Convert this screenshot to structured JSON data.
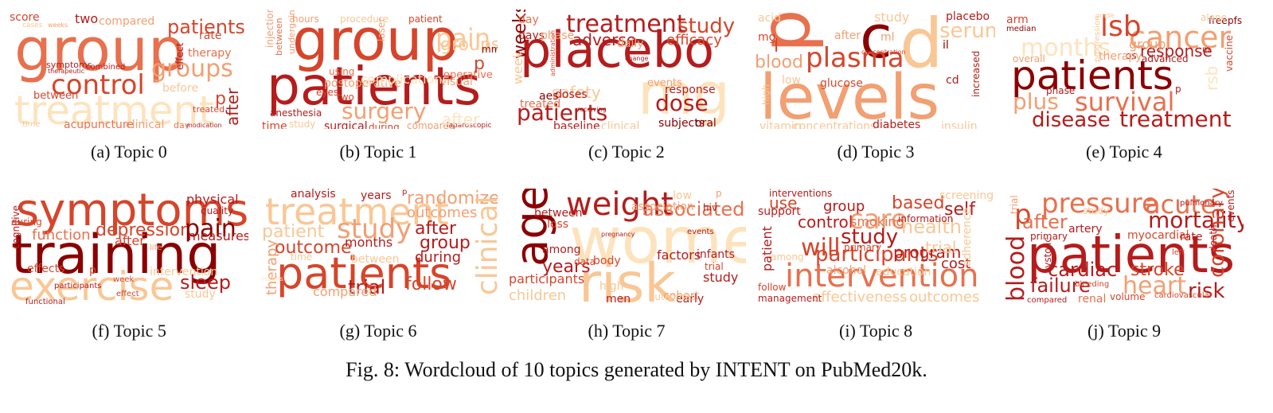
{
  "colors": {
    "c1": "#8b0000",
    "c2": "#b51c1c",
    "c3": "#d6452b",
    "c4": "#e8704d",
    "c5": "#f29f72",
    "c6": "#f9c795",
    "c7": "#fde3bd"
  },
  "panels": [
    {
      "caption": "(a) Topic 0",
      "words": [
        {
          "t": "group",
          "c": "c4"
        },
        {
          "t": "treatment",
          "c": "c7"
        },
        {
          "t": "control",
          "c": "c3"
        },
        {
          "t": "groups",
          "c": "c5"
        },
        {
          "t": "patients",
          "c": "c3"
        },
        {
          "t": "two",
          "c": "c2"
        },
        {
          "t": "compared",
          "c": "c5"
        },
        {
          "t": "score",
          "c": "c3"
        },
        {
          "t": "cases",
          "c": "c6"
        },
        {
          "t": "weeks",
          "c": "c5"
        },
        {
          "t": "rate",
          "c": "c3"
        },
        {
          "t": "therapy",
          "c": "c4"
        },
        {
          "t": "before",
          "c": "c6"
        },
        {
          "t": "between",
          "c": "c3"
        },
        {
          "t": "after",
          "c": "c2"
        },
        {
          "t": "p",
          "c": "c3"
        },
        {
          "t": "effect",
          "c": "c2"
        },
        {
          "t": "symptoms",
          "c": "c2"
        },
        {
          "t": "combined",
          "c": "c2"
        },
        {
          "t": "therapeutic",
          "c": "c2"
        },
        {
          "t": "acupuncture",
          "c": "c4"
        },
        {
          "t": "clinical",
          "c": "c5"
        },
        {
          "t": "day",
          "c": "c4"
        },
        {
          "t": "modication",
          "c": "c2"
        },
        {
          "t": "treated",
          "c": "c3"
        },
        {
          "t": "time",
          "c": "c6"
        }
      ]
    },
    {
      "caption": "(b) Topic 1",
      "words": [
        {
          "t": "group",
          "c": "c3"
        },
        {
          "t": "patients",
          "c": "c2"
        },
        {
          "t": "pain",
          "c": "c6"
        },
        {
          "t": "surgery",
          "c": "c5"
        },
        {
          "t": "groups",
          "c": "c6"
        },
        {
          "t": "postoperative",
          "c": "c5"
        },
        {
          "t": "hours",
          "c": "c5"
        },
        {
          "t": "procedure",
          "c": "c6"
        },
        {
          "t": "patient",
          "c": "c3"
        },
        {
          "t": "injection",
          "c": "c5"
        },
        {
          "t": "between",
          "c": "c4"
        },
        {
          "t": "undergoing",
          "c": "c5"
        },
        {
          "t": "anesthesia",
          "c": "c2"
        },
        {
          "t": "time",
          "c": "c3"
        },
        {
          "t": "study",
          "c": "c6"
        },
        {
          "t": "surgical",
          "c": "c2"
        },
        {
          "t": "during",
          "c": "c3"
        },
        {
          "t": "compared",
          "c": "c5"
        },
        {
          "t": "laparoscopic",
          "c": "c2"
        },
        {
          "t": "visual",
          "c": "c5"
        },
        {
          "t": "eyes",
          "c": "c3"
        },
        {
          "t": "using",
          "c": "c4"
        },
        {
          "t": "two",
          "c": "c3"
        },
        {
          "t": "operative",
          "c": "c4"
        },
        {
          "t": "p",
          "c": "c3"
        },
        {
          "t": "mm",
          "c": "c1"
        },
        {
          "t": "laser",
          "c": "c5"
        },
        {
          "t": "complications",
          "c": "c7"
        },
        {
          "t": "after",
          "c": "c7"
        }
      ]
    },
    {
      "caption": "(c) Topic 2",
      "words": [
        {
          "t": "placebo",
          "c": "c2"
        },
        {
          "t": "treatment",
          "c": "c2"
        },
        {
          "t": "study",
          "c": "c3"
        },
        {
          "t": "mg",
          "c": "c7"
        },
        {
          "t": "patients",
          "c": "c2"
        },
        {
          "t": "dose",
          "c": "c2"
        },
        {
          "t": "adverse",
          "c": "c2"
        },
        {
          "t": "efficacy",
          "c": "c3"
        },
        {
          "t": "safety",
          "c": "c6"
        },
        {
          "t": "weeks",
          "c": "c1"
        },
        {
          "t": "week",
          "c": "c6"
        },
        {
          "t": "day",
          "c": "c4"
        },
        {
          "t": "days",
          "c": "c2"
        },
        {
          "t": "phase",
          "c": "c5"
        },
        {
          "t": "daily",
          "c": "c5"
        },
        {
          "t": "doses",
          "c": "c2"
        },
        {
          "t": "aes",
          "c": "c1"
        },
        {
          "t": "treated",
          "c": "c4"
        },
        {
          "t": "response",
          "c": "c2"
        },
        {
          "t": "events",
          "c": "c5"
        },
        {
          "t": "baseline",
          "c": "c2"
        },
        {
          "t": "clinical",
          "c": "c6"
        },
        {
          "t": "subjects",
          "c": "c1"
        },
        {
          "t": "oral",
          "c": "c1"
        },
        {
          "t": "change",
          "c": "c2"
        },
        {
          "t": "administration",
          "c": "c3"
        },
        {
          "t": "receiving",
          "c": "c2"
        }
      ]
    },
    {
      "caption": "(d) Topic 3",
      "words": [
        {
          "t": "levels",
          "c": "c5"
        },
        {
          "t": "c",
          "c": "c1"
        },
        {
          "t": "d",
          "c": "c6"
        },
        {
          "t": "p",
          "c": "c4"
        },
        {
          "t": "t",
          "c": "c5"
        },
        {
          "t": "plasma",
          "c": "c3"
        },
        {
          "t": "blood",
          "c": "c5"
        },
        {
          "t": "serum",
          "c": "c6"
        },
        {
          "t": "study",
          "c": "c6"
        },
        {
          "t": "placebo",
          "c": "c2"
        },
        {
          "t": "acid",
          "c": "c6"
        },
        {
          "t": "mg",
          "c": "c3"
        },
        {
          "t": "l",
          "c": "c3"
        },
        {
          "t": "glucose",
          "c": "c3"
        },
        {
          "t": "increased",
          "c": "c2"
        },
        {
          "t": "il",
          "c": "c1"
        },
        {
          "t": "after",
          "c": "c5"
        },
        {
          "t": "concentration",
          "c": "c3"
        },
        {
          "t": "vitamin",
          "c": "c6"
        },
        {
          "t": "concentrations",
          "c": "c6"
        },
        {
          "t": "diabetes",
          "c": "c2"
        },
        {
          "t": "insulin",
          "c": "c6"
        },
        {
          "t": "low",
          "c": "c6"
        },
        {
          "t": "high",
          "c": "c6"
        },
        {
          "t": "ml",
          "c": "c5"
        },
        {
          "t": "cd",
          "c": "c2"
        }
      ]
    },
    {
      "caption": "(e) Topic 4",
      "words": [
        {
          "t": "patients",
          "c": "c1"
        },
        {
          "t": "cancer",
          "c": "c5"
        },
        {
          "t": "lsb",
          "c": "c3"
        },
        {
          "t": "months",
          "c": "c7"
        },
        {
          "t": "survival",
          "c": "c4"
        },
        {
          "t": "treatment",
          "c": "c2"
        },
        {
          "t": "disease",
          "c": "c2"
        },
        {
          "t": "plus",
          "c": "c5"
        },
        {
          "t": "response",
          "c": "c2"
        },
        {
          "t": "group",
          "c": "c5"
        },
        {
          "t": "arm",
          "c": "c3"
        },
        {
          "t": "median",
          "c": "c1"
        },
        {
          "t": "free",
          "c": "c1"
        },
        {
          "t": "pfs",
          "c": "c1"
        },
        {
          "t": "overall",
          "c": "c5"
        },
        {
          "t": "os",
          "c": "c2"
        },
        {
          "t": "advanced",
          "c": "c2"
        },
        {
          "t": "therapy",
          "c": "c5"
        },
        {
          "t": "progression",
          "c": "c6"
        },
        {
          "t": "phase",
          "c": "c2"
        },
        {
          "t": "rsb",
          "c": "c7"
        },
        {
          "t": "vaccine",
          "c": "c3"
        },
        {
          "t": "p",
          "c": "c2"
        },
        {
          "t": "alone",
          "c": "c6"
        },
        {
          "t": "m",
          "c": "c2"
        },
        {
          "t": "grade",
          "c": "c6"
        }
      ]
    },
    {
      "caption": "(f) Topic 5",
      "words": [
        {
          "t": "training",
          "c": "c1"
        },
        {
          "t": "symptoms",
          "c": "c3"
        },
        {
          "t": "exercise",
          "c": "c6"
        },
        {
          "t": "depression",
          "c": "c3"
        },
        {
          "t": "pain",
          "c": "c1"
        },
        {
          "t": "physical",
          "c": "c2"
        },
        {
          "t": "quality",
          "c": "c2"
        },
        {
          "t": "measures",
          "c": "c2"
        },
        {
          "t": "sleep",
          "c": "c2"
        },
        {
          "t": "function",
          "c": "c4"
        },
        {
          "t": "after",
          "c": "c3"
        },
        {
          "t": "effects",
          "c": "c3"
        },
        {
          "t": "during",
          "c": "c3"
        },
        {
          "t": "cognitive",
          "c": "c2"
        },
        {
          "t": "intervention",
          "c": "c6"
        },
        {
          "t": "participants",
          "c": "c2"
        },
        {
          "t": "functional",
          "c": "c2"
        },
        {
          "t": "effect",
          "c": "c3"
        },
        {
          "t": "study",
          "c": "c6"
        },
        {
          "t": "week",
          "c": "c3"
        },
        {
          "t": "life",
          "c": "c5"
        },
        {
          "t": "p",
          "c": "c3"
        }
      ]
    },
    {
      "caption": "(g) Topic 6",
      "words": [
        {
          "t": "patients",
          "c": "c3"
        },
        {
          "t": "treatment",
          "c": "c6"
        },
        {
          "t": "study",
          "c": "c5"
        },
        {
          "t": "trial",
          "c": "c2"
        },
        {
          "t": "randomized",
          "c": "c5"
        },
        {
          "t": "outcomes",
          "c": "c5"
        },
        {
          "t": "after",
          "c": "c2"
        },
        {
          "t": "group",
          "c": "c2"
        },
        {
          "t": "during",
          "c": "c2"
        },
        {
          "t": "follow",
          "c": "c3"
        },
        {
          "t": "outcome",
          "c": "c3"
        },
        {
          "t": "patient",
          "c": "c6"
        },
        {
          "t": "months",
          "c": "c2"
        },
        {
          "t": "between",
          "c": "c6"
        },
        {
          "t": "clinical",
          "c": "c6"
        },
        {
          "t": "therapy",
          "c": "c5"
        },
        {
          "t": "compared",
          "c": "c5"
        },
        {
          "t": "analysis",
          "c": "c2"
        },
        {
          "t": "years",
          "c": "c2"
        },
        {
          "t": "p",
          "c": "c2"
        },
        {
          "t": "time",
          "c": "c6"
        },
        {
          "t": "results",
          "c": "c7"
        }
      ]
    },
    {
      "caption": "(h) Topic 7",
      "words": [
        {
          "t": "women",
          "c": "c7"
        },
        {
          "t": "risk",
          "c": "c6"
        },
        {
          "t": "age",
          "c": "c1"
        },
        {
          "t": "weight",
          "c": "c2"
        },
        {
          "t": "associated",
          "c": "c4"
        },
        {
          "t": "years",
          "c": "c2"
        },
        {
          "t": "among",
          "c": "c2"
        },
        {
          "t": "participants",
          "c": "c3"
        },
        {
          "t": "children",
          "c": "c6"
        },
        {
          "t": "between",
          "c": "c2"
        },
        {
          "t": "factors",
          "c": "c2"
        },
        {
          "t": "infants",
          "c": "c2"
        },
        {
          "t": "study",
          "c": "c2"
        },
        {
          "t": "hiv",
          "c": "c2"
        },
        {
          "t": "trial",
          "c": "c3"
        },
        {
          "t": "loss",
          "c": "c3"
        },
        {
          "t": "body",
          "c": "c3"
        },
        {
          "t": "data",
          "c": "c3"
        },
        {
          "t": "events",
          "c": "c2"
        },
        {
          "t": "high",
          "c": "c6"
        },
        {
          "t": "men",
          "c": "c2"
        },
        {
          "t": "cohort",
          "c": "c5"
        },
        {
          "t": "early",
          "c": "c2"
        },
        {
          "t": "pregnancy",
          "c": "c2"
        },
        {
          "t": "association",
          "c": "c5"
        },
        {
          "t": "low",
          "c": "c6"
        },
        {
          "t": "p",
          "c": "c5"
        },
        {
          "t": "outcomes",
          "c": "c6"
        }
      ]
    },
    {
      "caption": "(i) Topic 8",
      "words": [
        {
          "t": "intervention",
          "c": "c4"
        },
        {
          "t": "participants",
          "c": "c3"
        },
        {
          "t": "care",
          "c": "c5"
        },
        {
          "t": "based",
          "c": "c3"
        },
        {
          "t": "study",
          "c": "c2"
        },
        {
          "t": "will",
          "c": "c3"
        },
        {
          "t": "health",
          "c": "c6"
        },
        {
          "t": "self",
          "c": "c2"
        },
        {
          "t": "program",
          "c": "c2"
        },
        {
          "t": "cost",
          "c": "c2"
        },
        {
          "t": "control",
          "c": "c2"
        },
        {
          "t": "group",
          "c": "c2"
        },
        {
          "t": "use",
          "c": "c3"
        },
        {
          "t": "smoking",
          "c": "c4"
        },
        {
          "t": "information",
          "c": "c2"
        },
        {
          "t": "screening",
          "c": "c6"
        },
        {
          "t": "interventions",
          "c": "c2"
        },
        {
          "t": "support",
          "c": "c2"
        },
        {
          "t": "patient",
          "c": "c2"
        },
        {
          "t": "primary",
          "c": "c3"
        },
        {
          "t": "alcohol",
          "c": "c5"
        },
        {
          "t": "effectiveness",
          "c": "c6"
        },
        {
          "t": "outcomes",
          "c": "c6"
        },
        {
          "t": "management",
          "c": "c2"
        },
        {
          "t": "follow",
          "c": "c3"
        },
        {
          "t": "among",
          "c": "c6"
        },
        {
          "t": "trial",
          "c": "c6"
        },
        {
          "t": "adherence",
          "c": "c6"
        },
        {
          "t": "education",
          "c": "c6"
        }
      ]
    },
    {
      "caption": "(j) Topic 9",
      "words": [
        {
          "t": "patients",
          "c": "c2"
        },
        {
          "t": "pressure",
          "c": "c4"
        },
        {
          "t": "acute",
          "c": "c4"
        },
        {
          "t": "mortality",
          "c": "c2"
        },
        {
          "t": "p",
          "c": "c3"
        },
        {
          "t": "after",
          "c": "c4"
        },
        {
          "t": "cardiac",
          "c": "c2"
        },
        {
          "t": "stroke",
          "c": "c3"
        },
        {
          "t": "failure",
          "c": "c2"
        },
        {
          "t": "heart",
          "c": "c5"
        },
        {
          "t": "risk",
          "c": "c2"
        },
        {
          "t": "blood",
          "c": "c2"
        },
        {
          "t": "coronary",
          "c": "c3"
        },
        {
          "t": "artery",
          "c": "c2"
        },
        {
          "t": "myocardial",
          "c": "c3"
        },
        {
          "t": "primary",
          "c": "c2"
        },
        {
          "t": "trial",
          "c": "c5"
        },
        {
          "t": "study",
          "c": "c6"
        },
        {
          "t": "rate",
          "c": "c2"
        },
        {
          "t": "death",
          "c": "c2"
        },
        {
          "t": "events",
          "c": "c2"
        },
        {
          "t": "pulmonary",
          "c": "c2"
        },
        {
          "t": "systolic",
          "c": "c2"
        },
        {
          "t": "volume",
          "c": "c3"
        },
        {
          "t": "renal",
          "c": "c4"
        },
        {
          "t": "compared",
          "c": "c2"
        },
        {
          "t": "bleeding",
          "c": "c3"
        },
        {
          "t": "cardiovascular",
          "c": "c3"
        },
        {
          "t": "left",
          "c": "c3"
        }
      ]
    }
  ],
  "figure_caption": "Fig. 8: Wordcloud of 10 topics generated by INTENT on PubMed20k."
}
